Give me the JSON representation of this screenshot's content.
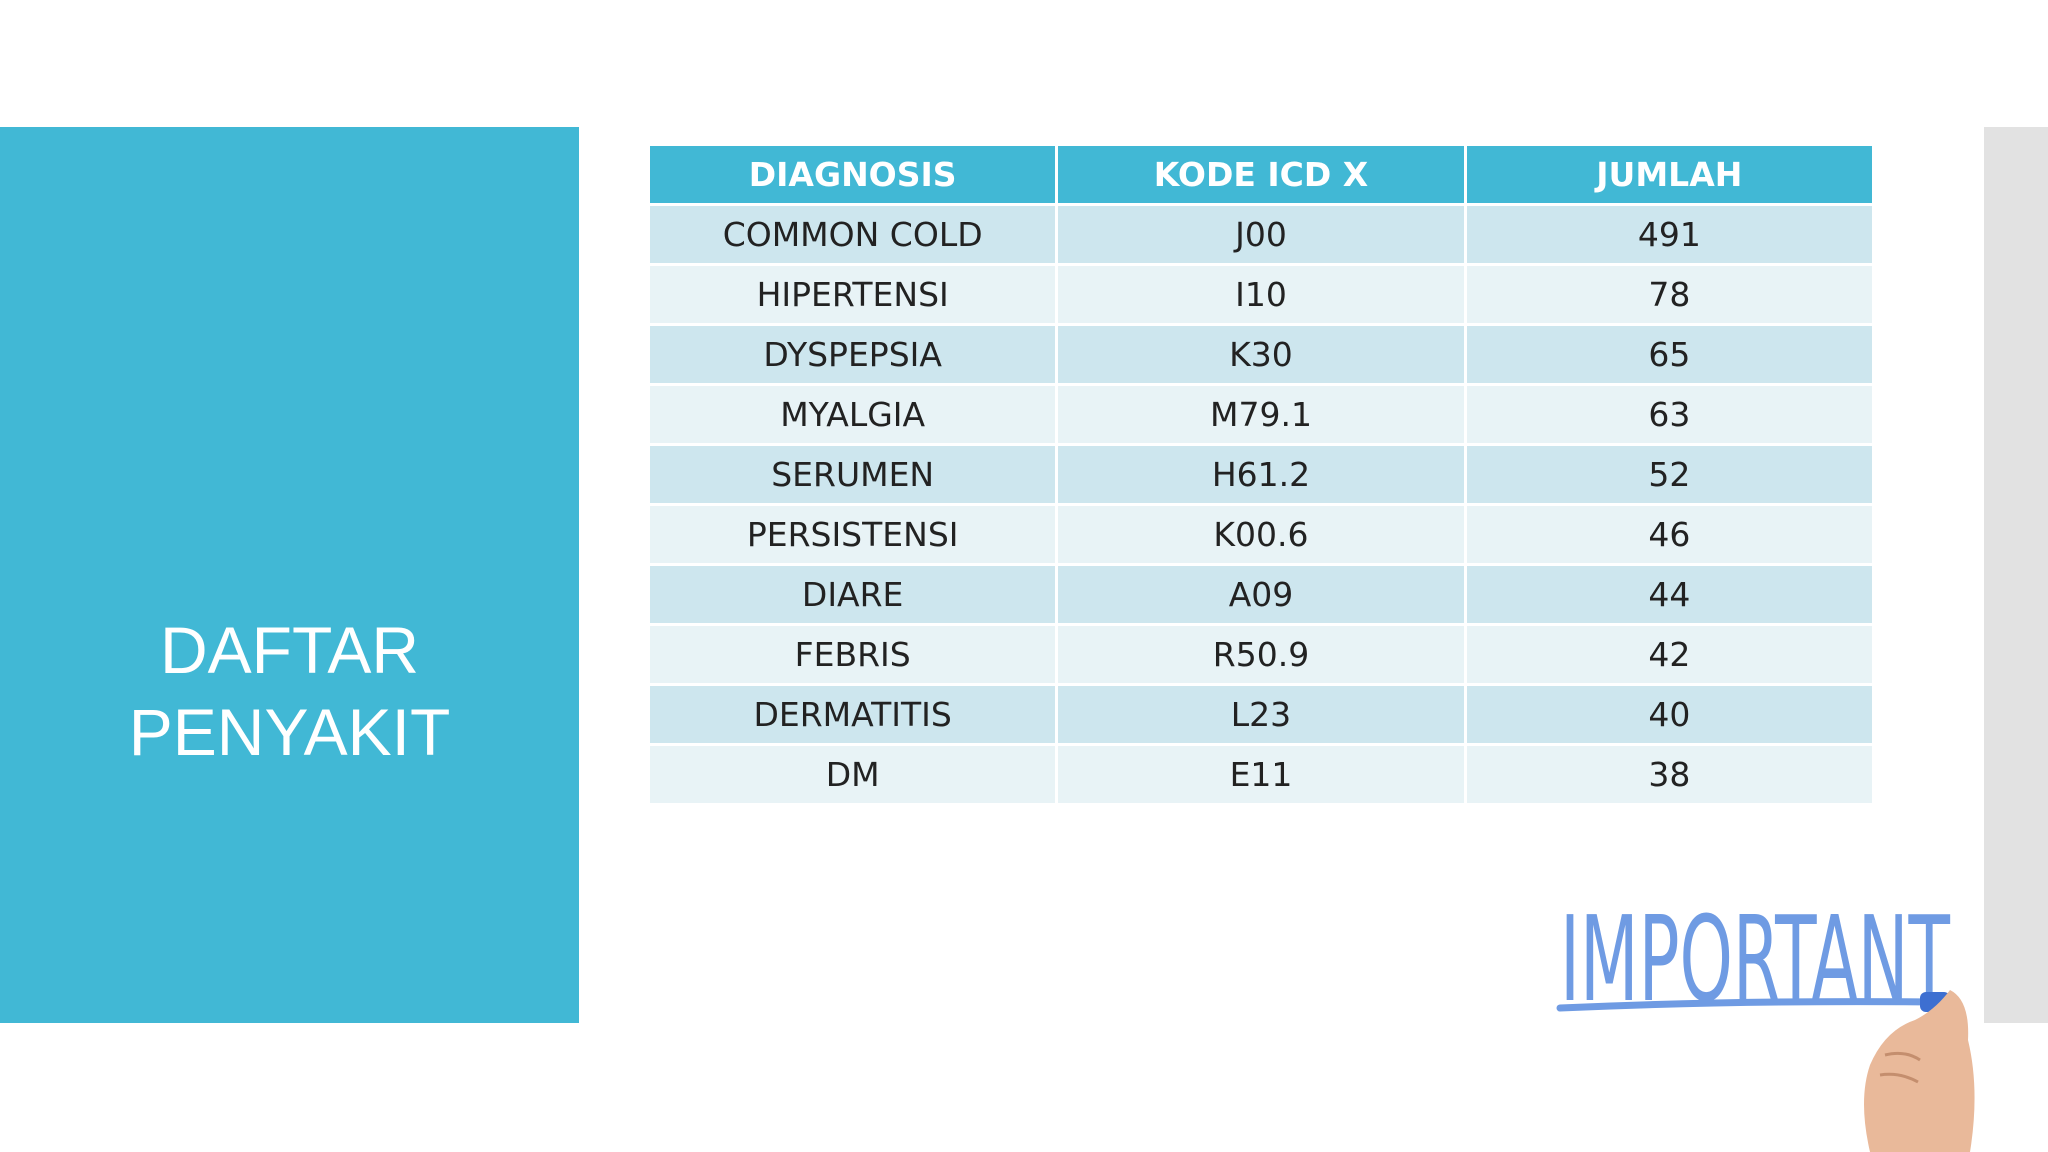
{
  "title": "DAFTAR PENYAKIT",
  "table": {
    "header": [
      "DIAGNOSIS",
      "KODE ICD X",
      "JUMLAH"
    ],
    "rows": [
      [
        "COMMON COLD",
        "J00",
        491
      ],
      [
        "HIPERTENSI",
        "I10",
        78
      ],
      [
        "DYSPEPSIA",
        "K30",
        65
      ],
      [
        "MYALGIA",
        "M79.1",
        63
      ],
      [
        "SERUMEN",
        "H61.2",
        52
      ],
      [
        "PERSISTENSI",
        "K00.6",
        46
      ],
      [
        "DIARE",
        "A09",
        44
      ],
      [
        "FEBRIS",
        "R50.9",
        42
      ],
      [
        "DERMATITIS",
        "L23",
        40
      ],
      [
        "DM",
        "E11",
        38
      ]
    ]
  },
  "illustration": {
    "text": "IMPORTANT"
  }
}
